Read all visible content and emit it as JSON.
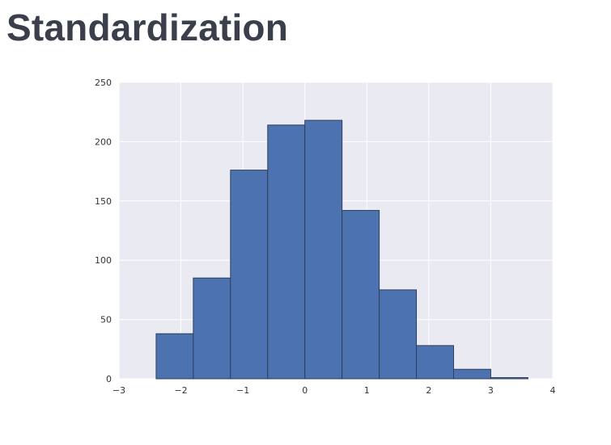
{
  "slide": {
    "title": "Standardization"
  },
  "chart_data": {
    "type": "bar",
    "title": "",
    "xlabel": "",
    "ylabel": "",
    "xlim": [
      -3,
      4
    ],
    "ylim": [
      0,
      250
    ],
    "grid": true,
    "bin_edges": [
      -2.4,
      -1.8,
      -1.2,
      -0.6,
      0.0,
      0.6,
      1.2,
      1.8,
      2.4,
      3.0,
      3.6
    ],
    "values": [
      38,
      85,
      176,
      214,
      218,
      142,
      75,
      28,
      8,
      1
    ],
    "x_ticks": [
      -3,
      -2,
      -1,
      0,
      1,
      2,
      3,
      4
    ],
    "x_tick_labels": [
      "−3",
      "−2",
      "−1",
      "0",
      "1",
      "2",
      "3",
      "4"
    ],
    "y_ticks": [
      0,
      50,
      100,
      150,
      200,
      250
    ],
    "y_tick_labels": [
      "0",
      "50",
      "100",
      "150",
      "200",
      "250"
    ],
    "colors": {
      "bar_fill": "#4c72b0",
      "bar_edge": "#2e3f5c",
      "plot_background": "#eaeaf2",
      "grid": "#ffffff"
    }
  }
}
